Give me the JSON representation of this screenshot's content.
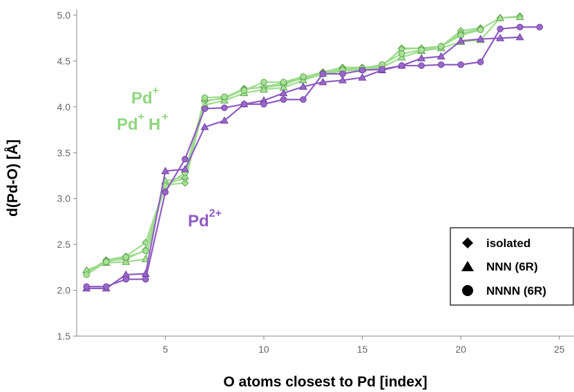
{
  "chart_data": {
    "type": "line",
    "xlabel": "O atoms closest to Pd [index]",
    "ylabel": "d(Pd-O) [Å]",
    "xlim": [
      0.5,
      25.5
    ],
    "ylim": [
      1.5,
      5.0
    ],
    "xticks": [
      5,
      10,
      15,
      20,
      25
    ],
    "yticks": [
      1.5,
      2.0,
      2.5,
      3.0,
      3.5,
      4.0,
      4.5,
      5.0
    ],
    "ytick_labels": [
      "1.5",
      "2.0",
      "2.5",
      "3.0",
      "3.5",
      "4.0",
      "4.5",
      "5.0"
    ],
    "grid": false,
    "colors": {
      "green": "#8fd67f",
      "purple": "#8f5cc2"
    },
    "annotations": [
      {
        "base": "Pd",
        "sup": "+",
        "color": "green"
      },
      {
        "base": "Pd",
        "sup": "+",
        "base2": "H",
        "sup2": "+",
        "color": "green"
      },
      {
        "base": "Pd",
        "sup": "2+",
        "color": "purple"
      }
    ],
    "legend": {
      "position": "bottom-right",
      "entries": [
        {
          "marker": "diamond",
          "label": "isolated"
        },
        {
          "marker": "triangle",
          "label": "NNN (6R)"
        },
        {
          "marker": "circle",
          "label": "NNNN (6R)"
        }
      ]
    },
    "series": [
      {
        "color": "green",
        "marker": "diamond",
        "x": [
          1,
          2,
          3,
          4,
          5,
          6,
          7,
          8,
          9,
          10,
          11,
          12,
          13,
          14,
          15,
          16,
          17,
          18,
          19,
          20,
          21
        ],
        "y": [
          2.19,
          2.33,
          2.37,
          2.52,
          3.15,
          3.17,
          4.06,
          4.1,
          4.2,
          4.21,
          4.24,
          4.32,
          4.38,
          4.43,
          4.43,
          4.44,
          4.64,
          4.64,
          4.66,
          4.83,
          4.86
        ]
      },
      {
        "color": "green",
        "marker": "diamond",
        "x": [
          1,
          2,
          3,
          4,
          5,
          6,
          7,
          8,
          9,
          10,
          11,
          12,
          13,
          14,
          15,
          16,
          17,
          18,
          19,
          20,
          21,
          22,
          23
        ],
        "y": [
          2.2,
          2.32,
          2.34,
          2.44,
          3.16,
          3.22,
          4.07,
          4.09,
          4.19,
          4.22,
          4.26,
          4.31,
          4.37,
          4.42,
          4.43,
          4.45,
          4.63,
          4.64,
          4.66,
          4.8,
          4.85,
          4.97,
          4.99
        ]
      },
      {
        "color": "green",
        "marker": "triangle",
        "x": [
          1,
          2,
          3,
          4,
          5,
          6,
          7,
          8,
          9,
          10,
          11,
          12,
          13,
          14,
          15,
          16,
          17,
          18,
          19,
          20,
          21,
          22,
          23
        ],
        "y": [
          2.22,
          2.3,
          2.31,
          2.34,
          3.19,
          3.24,
          4.02,
          4.07,
          4.15,
          4.19,
          4.21,
          4.29,
          4.36,
          4.39,
          4.41,
          4.43,
          4.54,
          4.61,
          4.64,
          4.71,
          4.73,
          4.97,
          4.98
        ]
      },
      {
        "color": "green",
        "marker": "circle",
        "x": [
          1,
          2,
          3,
          4,
          5,
          6,
          7,
          8,
          9,
          10,
          11,
          12,
          13,
          14,
          15,
          16,
          17,
          18,
          19,
          20,
          21
        ],
        "y": [
          2.17,
          2.31,
          2.36,
          2.43,
          3.14,
          3.28,
          4.1,
          4.11,
          4.18,
          4.27,
          4.27,
          4.33,
          4.36,
          4.4,
          4.42,
          4.46,
          4.58,
          4.62,
          4.66,
          4.78,
          4.84
        ]
      },
      {
        "color": "purple",
        "marker": "triangle",
        "x": [
          1,
          2,
          3,
          4,
          5,
          6,
          7,
          8,
          9,
          10,
          11,
          12,
          13,
          14,
          15,
          16,
          17,
          18,
          19,
          20,
          21,
          22,
          23
        ],
        "y": [
          2.02,
          2.02,
          2.17,
          2.18,
          3.3,
          3.32,
          3.78,
          3.85,
          4.03,
          4.07,
          4.15,
          4.22,
          4.27,
          4.29,
          4.32,
          4.4,
          4.45,
          4.53,
          4.55,
          4.72,
          4.74,
          4.75,
          4.76
        ]
      },
      {
        "color": "purple",
        "marker": "circle",
        "x": [
          1,
          2,
          3,
          4,
          5,
          6,
          7,
          8,
          9,
          10,
          11,
          12,
          13,
          14,
          15,
          16,
          17,
          18,
          19,
          20,
          21,
          22,
          23,
          24
        ],
        "y": [
          2.04,
          2.04,
          2.12,
          2.12,
          3.07,
          3.43,
          3.98,
          3.99,
          4.03,
          4.03,
          4.08,
          4.08,
          4.36,
          4.36,
          4.4,
          4.41,
          4.45,
          4.45,
          4.46,
          4.46,
          4.49,
          4.85,
          4.87,
          4.87
        ]
      }
    ]
  }
}
